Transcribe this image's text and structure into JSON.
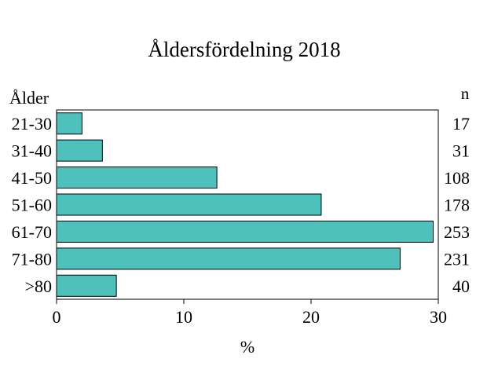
{
  "chart_data": {
    "type": "bar",
    "orientation": "horizontal",
    "title": "Åldersfördelning 2018",
    "ylabel": "Ålder",
    "xlabel": "%",
    "right_label": "n",
    "categories": [
      "21-30",
      "31-40",
      "41-50",
      "51-60",
      "61-70",
      "71-80",
      ">80"
    ],
    "values": [
      2.0,
      3.6,
      12.6,
      20.8,
      29.6,
      27.0,
      4.7
    ],
    "n": [
      "17",
      "31",
      "108",
      "178",
      "253",
      "231",
      "40"
    ],
    "xlim": [
      0,
      30
    ],
    "xticks": [
      "0",
      "10",
      "20",
      "30"
    ],
    "grid": false,
    "bar_color": "#4FC1BD",
    "bar_edge_color": "#000000"
  }
}
